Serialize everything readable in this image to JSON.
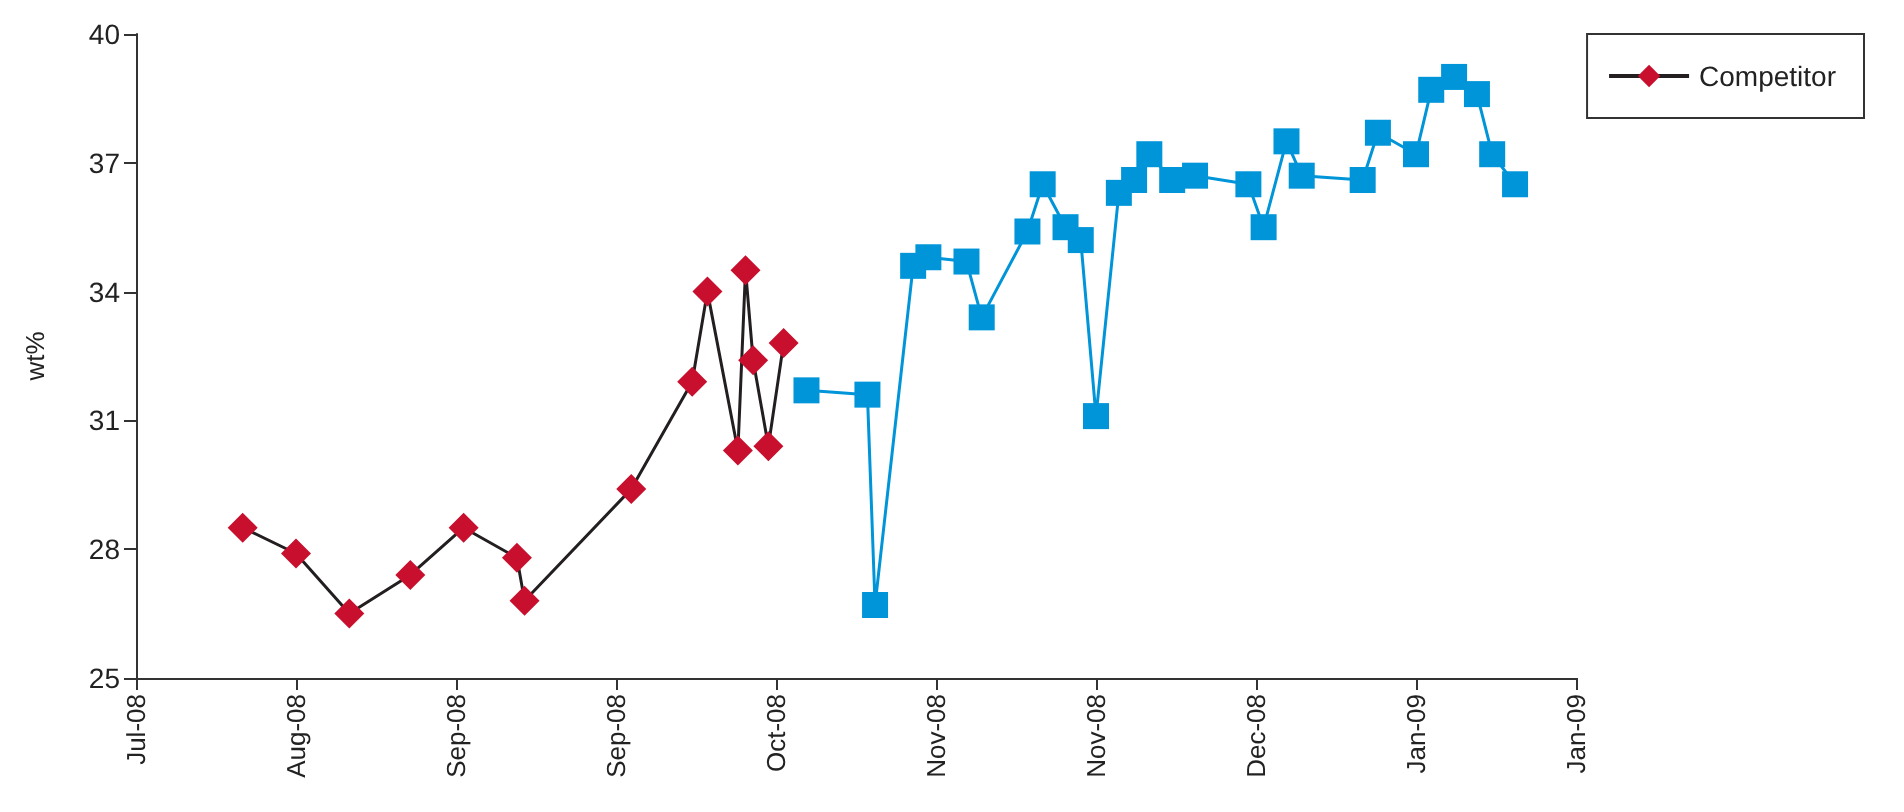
{
  "chart_data": {
    "type": "line",
    "ylabel": "wt%",
    "ylim": [
      25,
      40
    ],
    "yticks": [
      25,
      28,
      31,
      34,
      37,
      40
    ],
    "xlim": [
      "2008-07-25",
      "2009-01-30"
    ],
    "xticks": [
      {
        "value": "2008-07-25",
        "label": "Jul-08"
      },
      {
        "value": "2008-08-15",
        "label": "Aug-08"
      },
      {
        "value": "2008-09-05",
        "label": "Sep-08"
      },
      {
        "value": "2008-09-26",
        "label": "Sep-08"
      },
      {
        "value": "2008-10-17",
        "label": "Oct-08"
      },
      {
        "value": "2008-11-07",
        "label": "Nov-08"
      },
      {
        "value": "2008-11-28",
        "label": "Nov-08"
      },
      {
        "value": "2008-12-19",
        "label": "Dec-08"
      },
      {
        "value": "2009-01-09",
        "label": "Jan-09"
      },
      {
        "value": "2009-01-30",
        "label": "Jan-09"
      }
    ],
    "grid": false,
    "legend": "top right",
    "series": [
      {
        "name": "Competitor",
        "color": "#c8102e",
        "marker": "diamond",
        "x": [
          "2008-08-08",
          "2008-08-15",
          "2008-08-22",
          "2008-08-30",
          "2008-09-06",
          "2008-09-13",
          "2008-09-14",
          "2008-09-28",
          "2008-10-06",
          "2008-10-08",
          "2008-10-12",
          "2008-10-13",
          "2008-10-14",
          "2008-10-16",
          "2008-10-18"
        ],
        "values": [
          28.5,
          27.9,
          26.5,
          27.4,
          28.5,
          27.8,
          26.8,
          29.4,
          31.9,
          34.0,
          30.3,
          34.5,
          32.4,
          30.4,
          32.8
        ]
      },
      {
        "color": "#0095d9",
        "marker": "square",
        "x": [
          "2008-10-21",
          "2008-10-29",
          "2008-10-30",
          "2008-11-04",
          "2008-11-06",
          "2008-11-11",
          "2008-11-13",
          "2008-11-19",
          "2008-11-21",
          "2008-11-24",
          "2008-11-26",
          "2008-11-28",
          "2008-12-01",
          "2008-12-03",
          "2008-12-05",
          "2008-12-08",
          "2008-12-11",
          "2008-12-18",
          "2008-12-20",
          "2008-12-23",
          "2008-12-25",
          "2009-01-02",
          "2009-01-04",
          "2009-01-09",
          "2009-01-11",
          "2009-01-14",
          "2009-01-17",
          "2009-01-19",
          "2009-01-22"
        ],
        "values": [
          31.7,
          31.6,
          26.7,
          34.6,
          34.8,
          34.7,
          33.4,
          35.4,
          36.5,
          35.5,
          35.2,
          31.1,
          36.3,
          36.6,
          37.2,
          36.6,
          36.7,
          36.5,
          35.5,
          37.5,
          36.7,
          36.6,
          37.7,
          37.2,
          38.7,
          39.0,
          38.6,
          37.2,
          36.5
        ]
      }
    ]
  }
}
